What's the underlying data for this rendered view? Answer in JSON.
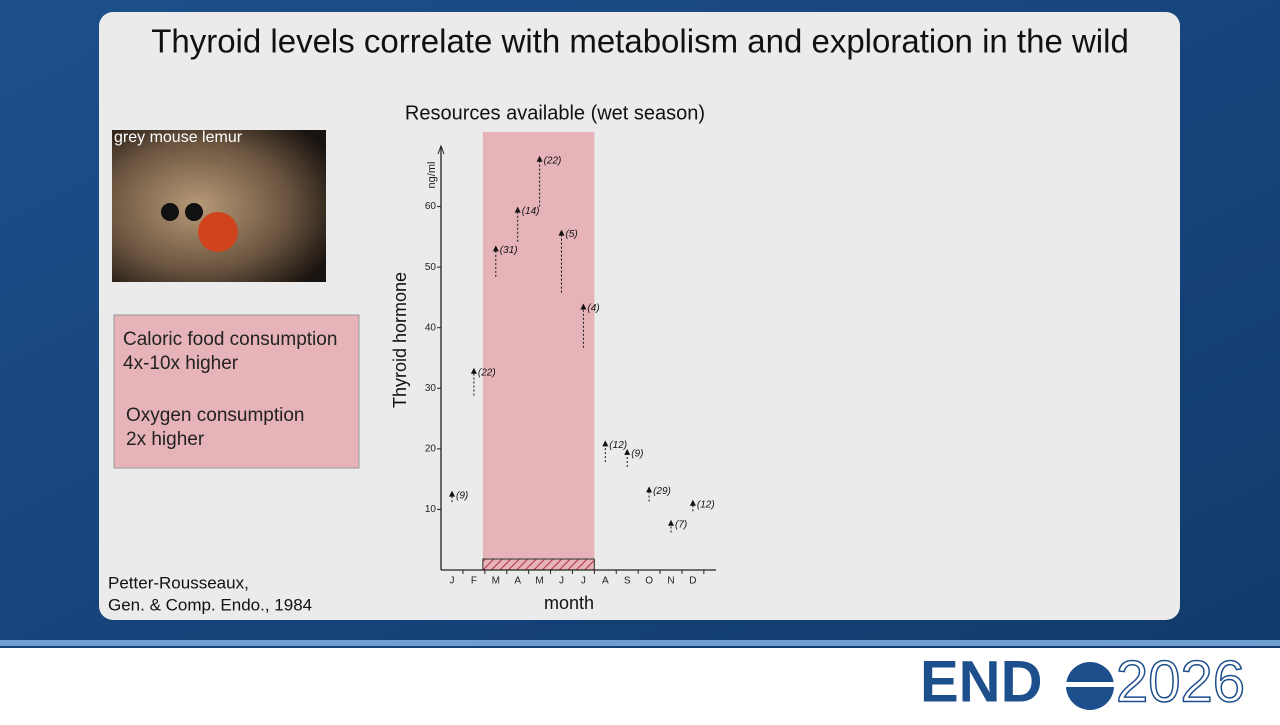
{
  "slide": {
    "title": "Thyroid levels correlate with metabolism and exploration in the wild",
    "image_caption": "grey mouse lemur",
    "box_lines": [
      "Caloric food consumption",
      "4x-10x higher",
      "Oxygen consumption",
      "2x higher"
    ],
    "citation": [
      "Petter-Rousseaux,",
      "Gen. & Comp. Endo., 1984"
    ],
    "logo": [
      "END",
      "2026"
    ]
  },
  "chart_data": {
    "type": "range-arrow",
    "title": "Resources available (wet season)",
    "y_label": "Thyroid hormone",
    "y_unit": "ng/ml",
    "x_label": "month",
    "categories": [
      "J",
      "F",
      "M",
      "A",
      "M",
      "J",
      "J",
      "A",
      "S",
      "O",
      "N",
      "D"
    ],
    "values": [
      13.1,
      33.4,
      53.6,
      60,
      68.4,
      56.2,
      44,
      21.4,
      20,
      13.8,
      8.3,
      11.6
    ],
    "lows": [
      11.2,
      28.8,
      48.4,
      54.2,
      60,
      45.8,
      36.7,
      17.8,
      17,
      11.3,
      6.2,
      9.7
    ],
    "n_labels": [
      "(9)",
      "(22)",
      "(31)",
      "(14)",
      "(22)",
      "(5)",
      "(4)",
      "(12)",
      "(9)",
      "(29)",
      "(7)",
      "(12)"
    ],
    "color": "#111111",
    "highlight": {
      "from": 2,
      "to": 6,
      "color": "#e6b3b8"
    },
    "ylim": [
      0,
      70
    ],
    "yticks": [
      10,
      20,
      30,
      40,
      50,
      60
    ]
  }
}
